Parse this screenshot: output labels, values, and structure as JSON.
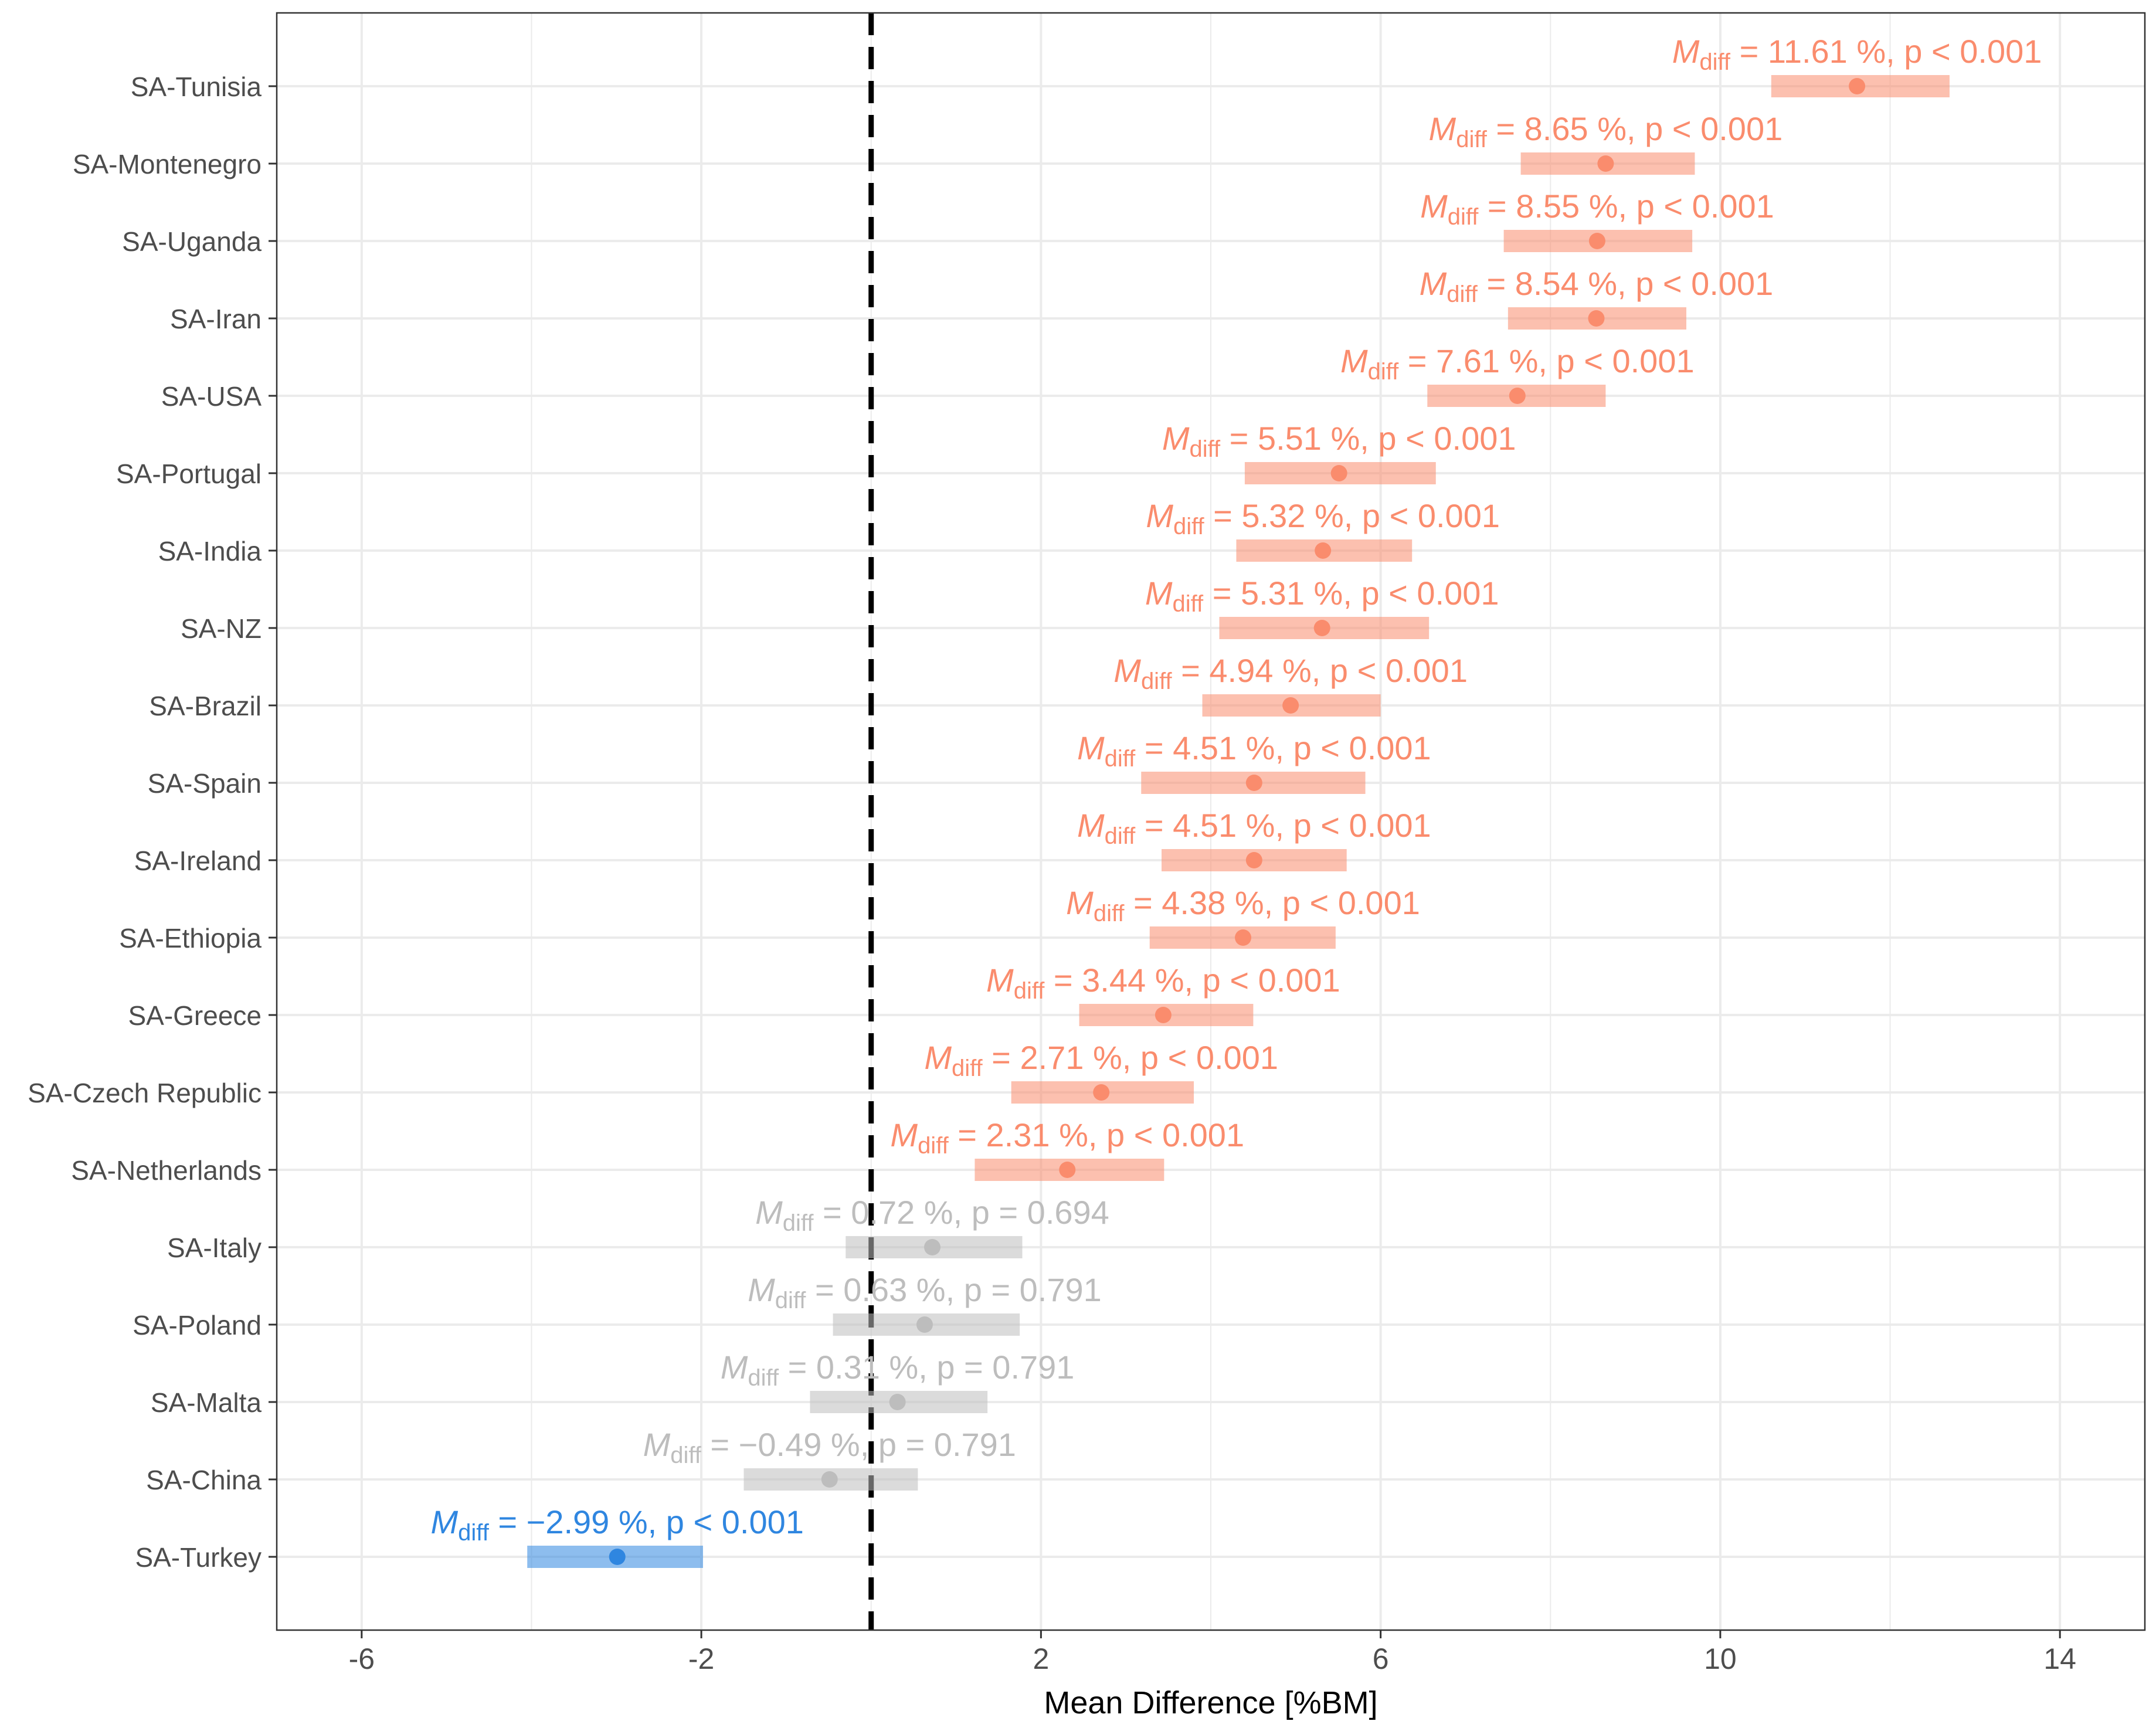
{
  "colors": {
    "significant_positive": "#FA8C6D",
    "significant_negative": "#2F86E0",
    "not_significant": "#BDBDBD",
    "reference_line": "#000000",
    "grid": "#EBEBEB",
    "panel_border": "#333333"
  },
  "chart_data": {
    "type": "forest",
    "title": "",
    "xlabel": "Mean Difference [%BM]",
    "ylabel": "",
    "xlim": [
      -7,
      15
    ],
    "x_ticks": [
      -6,
      -2,
      2,
      6,
      10,
      14
    ],
    "reference_line": 0,
    "reference_line_style": "dashed",
    "grid": true,
    "rows": [
      {
        "label": "SA-Tunisia",
        "mean": 11.61,
        "ci_low": 10.6,
        "ci_high": 12.7,
        "annotation_value": "11.61",
        "p_text": "p < 0.001",
        "status": "positive"
      },
      {
        "label": "SA-Montenegro",
        "mean": 8.65,
        "ci_low": 7.65,
        "ci_high": 9.7,
        "annotation_value": "8.65",
        "p_text": "p < 0.001",
        "status": "positive"
      },
      {
        "label": "SA-Uganda",
        "mean": 8.55,
        "ci_low": 7.45,
        "ci_high": 9.67,
        "annotation_value": "8.55",
        "p_text": "p < 0.001",
        "status": "positive"
      },
      {
        "label": "SA-Iran",
        "mean": 8.54,
        "ci_low": 7.5,
        "ci_high": 9.6,
        "annotation_value": "8.54",
        "p_text": "p < 0.001",
        "status": "positive"
      },
      {
        "label": "SA-USA",
        "mean": 7.61,
        "ci_low": 6.55,
        "ci_high": 8.65,
        "annotation_value": "7.61",
        "p_text": "p < 0.001",
        "status": "positive"
      },
      {
        "label": "SA-Portugal",
        "mean": 5.51,
        "ci_low": 4.4,
        "ci_high": 6.65,
        "annotation_value": "5.51",
        "p_text": "p < 0.001",
        "status": "positive"
      },
      {
        "label": "SA-India",
        "mean": 5.32,
        "ci_low": 4.3,
        "ci_high": 6.37,
        "annotation_value": "5.32",
        "p_text": "p < 0.001",
        "status": "positive"
      },
      {
        "label": "SA-NZ",
        "mean": 5.31,
        "ci_low": 4.1,
        "ci_high": 6.57,
        "annotation_value": "5.31",
        "p_text": "p < 0.001",
        "status": "positive"
      },
      {
        "label": "SA-Brazil",
        "mean": 4.94,
        "ci_low": 3.9,
        "ci_high": 6.0,
        "annotation_value": "4.94",
        "p_text": "p < 0.001",
        "status": "positive"
      },
      {
        "label": "SA-Spain",
        "mean": 4.51,
        "ci_low": 3.18,
        "ci_high": 5.82,
        "annotation_value": "4.51",
        "p_text": "p < 0.001",
        "status": "positive"
      },
      {
        "label": "SA-Ireland",
        "mean": 4.51,
        "ci_low": 3.42,
        "ci_high": 5.6,
        "annotation_value": "4.51",
        "p_text": "p < 0.001",
        "status": "positive"
      },
      {
        "label": "SA-Ethiopia",
        "mean": 4.38,
        "ci_low": 3.28,
        "ci_high": 5.47,
        "annotation_value": "4.38",
        "p_text": "p < 0.001",
        "status": "positive"
      },
      {
        "label": "SA-Greece",
        "mean": 3.44,
        "ci_low": 2.45,
        "ci_high": 4.5,
        "annotation_value": "3.44",
        "p_text": "p < 0.001",
        "status": "positive"
      },
      {
        "label": "SA-Czech Republic",
        "mean": 2.71,
        "ci_low": 1.65,
        "ci_high": 3.8,
        "annotation_value": "2.71",
        "p_text": "p < 0.001",
        "status": "positive"
      },
      {
        "label": "SA-Netherlands",
        "mean": 2.31,
        "ci_low": 1.22,
        "ci_high": 3.45,
        "annotation_value": "2.31",
        "p_text": "p < 0.001",
        "status": "positive"
      },
      {
        "label": "SA-Italy",
        "mean": 0.72,
        "ci_low": -0.3,
        "ci_high": 1.78,
        "annotation_value": "0.72",
        "p_text": "p = 0.694",
        "status": "ns"
      },
      {
        "label": "SA-Poland",
        "mean": 0.63,
        "ci_low": -0.45,
        "ci_high": 1.75,
        "annotation_value": "0.63",
        "p_text": "p = 0.791",
        "status": "ns"
      },
      {
        "label": "SA-Malta",
        "mean": 0.31,
        "ci_low": -0.72,
        "ci_high": 1.37,
        "annotation_value": "0.31",
        "p_text": "p = 0.791",
        "status": "ns"
      },
      {
        "label": "SA-China",
        "mean": -0.49,
        "ci_low": -1.5,
        "ci_high": 0.55,
        "annotation_value": "−0.49",
        "p_text": "p = 0.791",
        "status": "ns"
      },
      {
        "label": "SA-Turkey",
        "mean": -2.99,
        "ci_low": -4.05,
        "ci_high": -1.98,
        "annotation_value": "−2.99",
        "p_text": "p < 0.001",
        "status": "negative"
      }
    ],
    "annotation_template": {
      "symbol": "M",
      "subscript": "diff",
      "prefix": " = ",
      "unit": " %,  "
    }
  }
}
